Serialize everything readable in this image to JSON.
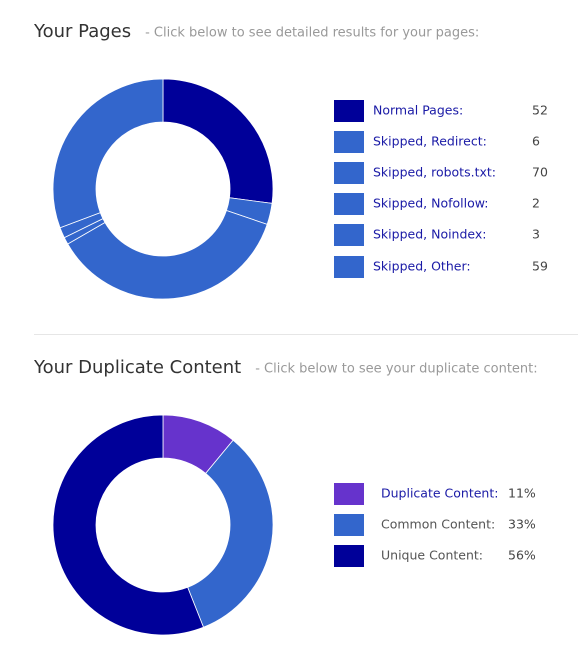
{
  "chart_data": [
    {
      "type": "pie",
      "title": "Your Pages",
      "subtitle": "-  Click below to see detailed results for your pages:",
      "categories": [
        "Normal Pages:",
        "Skipped, Redirect:",
        "Skipped, robots.txt:",
        "Skipped, Nofollow:",
        "Skipped, Noindex:",
        "Skipped, Other:"
      ],
      "values": [
        52,
        6,
        70,
        2,
        3,
        59
      ],
      "colors": [
        "#000099",
        "#3366cc",
        "#3366cc",
        "#3366cc",
        "#3366cc",
        "#3366cc"
      ],
      "label_colors": [
        "#1a1aa6",
        "#1a1aa6",
        "#1a1aa6",
        "#1a1aa6",
        "#1a1aa6",
        "#1a1aa6"
      ]
    },
    {
      "type": "pie",
      "title": "Your Duplicate Content",
      "subtitle": "-  Click below to see your duplicate content:",
      "categories": [
        "Duplicate Content:",
        "Common Content:",
        "Unique Content:"
      ],
      "values": [
        11,
        33,
        56
      ],
      "value_labels": [
        "11%",
        "33%",
        "56%"
      ],
      "colors": [
        "#6633cc",
        "#3366cc",
        "#000099"
      ],
      "label_colors": [
        "#1a1aa6",
        "#555555",
        "#555555"
      ]
    }
  ]
}
